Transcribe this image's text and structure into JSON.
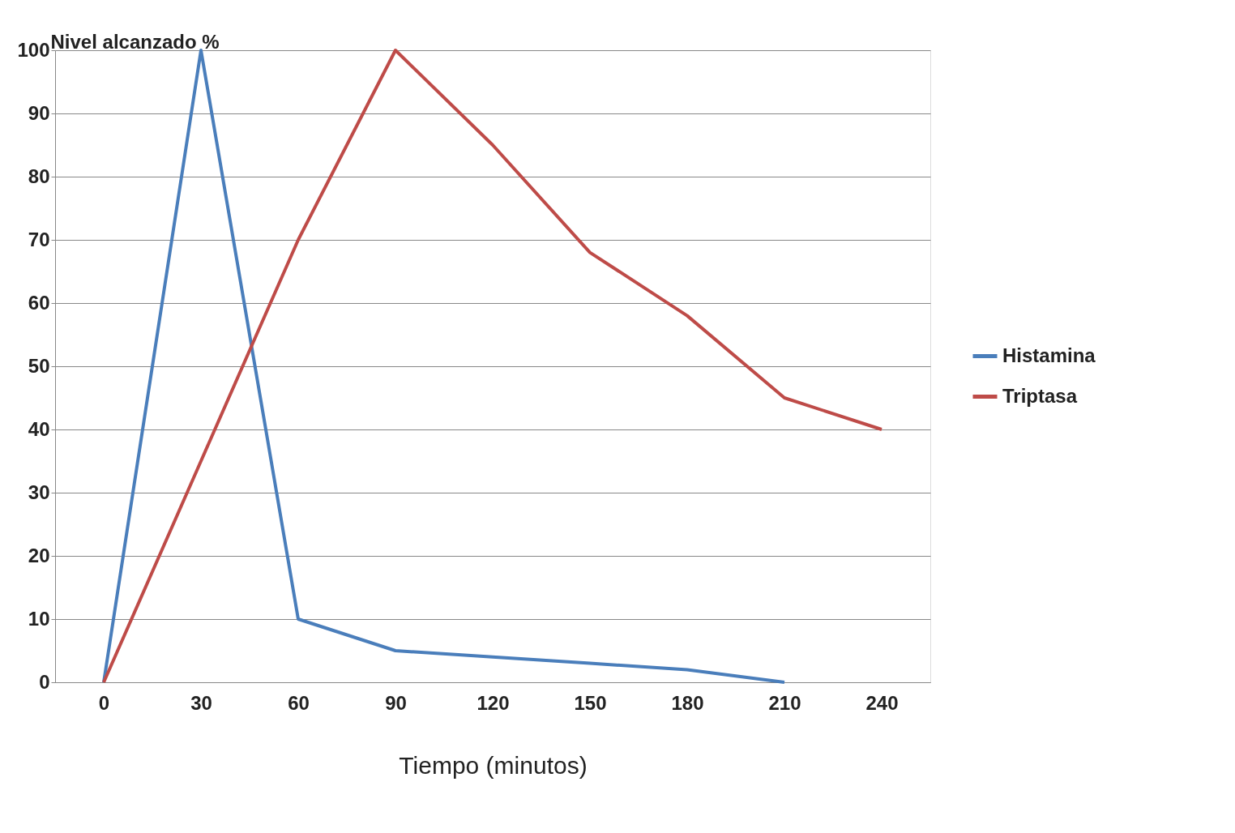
{
  "chart_data": {
    "type": "line",
    "ylabel": "Nivel  alcanzado %",
    "xlabel": "Tiempo (minutos)",
    "categories": [
      "0",
      "30",
      "60",
      "90",
      "120",
      "150",
      "180",
      "210",
      "240"
    ],
    "series": [
      {
        "name": "Histamina",
        "color": "#4a7ebb",
        "values": [
          0,
          100,
          10,
          5,
          4,
          3,
          2,
          0,
          null
        ]
      },
      {
        "name": "Triptasa",
        "color": "#be4b48",
        "values": [
          0,
          35,
          70,
          100,
          85,
          68,
          58,
          45,
          40
        ]
      }
    ],
    "ylim": [
      0,
      100
    ],
    "yticks": [
      0,
      10,
      20,
      30,
      40,
      50,
      60,
      70,
      80,
      90,
      100
    ],
    "grid": "y",
    "legend": "right",
    "line_style": "solid"
  }
}
